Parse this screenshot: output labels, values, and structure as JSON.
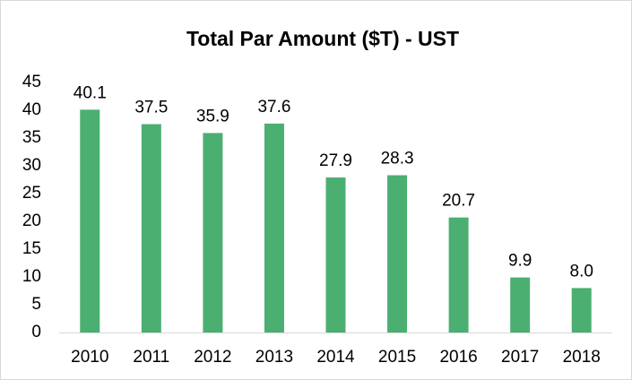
{
  "chart_data": {
    "type": "bar",
    "title": "Total Par Amount ($T) - UST",
    "categories": [
      "2010",
      "2011",
      "2012",
      "2013",
      "2014",
      "2015",
      "2016",
      "2017",
      "2018"
    ],
    "values": [
      40.1,
      37.5,
      35.9,
      37.6,
      27.9,
      28.3,
      20.7,
      9.9,
      8.0
    ],
    "value_labels": [
      "40.1",
      "37.5",
      "35.9",
      "37.6",
      "27.9",
      "28.3",
      "20.7",
      "9.9",
      "8.0"
    ],
    "color": "#4caf72",
    "ylim": [
      0,
      45
    ],
    "yticks": [
      0,
      5,
      10,
      15,
      20,
      25,
      30,
      35,
      40,
      45
    ],
    "grid": false
  }
}
